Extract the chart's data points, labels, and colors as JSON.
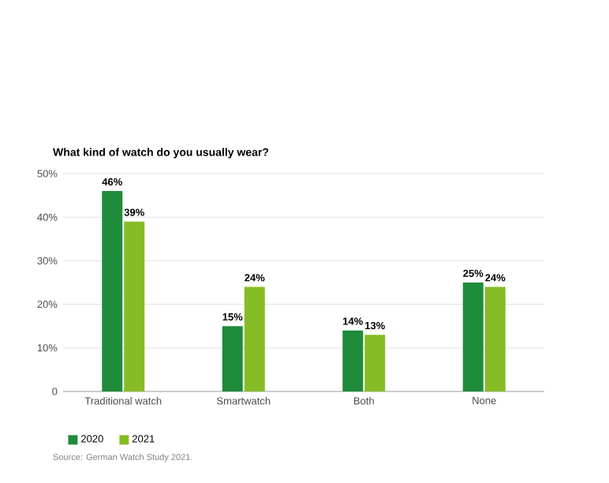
{
  "chart_data": {
    "type": "bar",
    "title": "What kind of watch do you usually wear?",
    "categories": [
      "Traditional watch",
      "Smartwatch",
      "Both",
      "None"
    ],
    "series": [
      {
        "name": "2020",
        "color": "#1e8c3a",
        "values": [
          46,
          15,
          14,
          25
        ],
        "value_labels": [
          "46%",
          "15%",
          "14%",
          "25%"
        ]
      },
      {
        "name": "2021",
        "color": "#86bc25",
        "values": [
          39,
          24,
          13,
          24
        ],
        "value_labels": [
          "39%",
          "24%",
          "13%",
          "24%"
        ]
      }
    ],
    "ylim": [
      0,
      50
    ],
    "yticks": [
      {
        "value": 0,
        "label": "0"
      },
      {
        "value": 10,
        "label": "10%"
      },
      {
        "value": 20,
        "label": "20%"
      },
      {
        "value": 30,
        "label": "30%"
      },
      {
        "value": 40,
        "label": "40%"
      },
      {
        "value": 50,
        "label": "50%"
      }
    ],
    "grid": "y",
    "legend": "bottom left",
    "annotations": [
      "Source: German Watch Study 2021."
    ]
  }
}
